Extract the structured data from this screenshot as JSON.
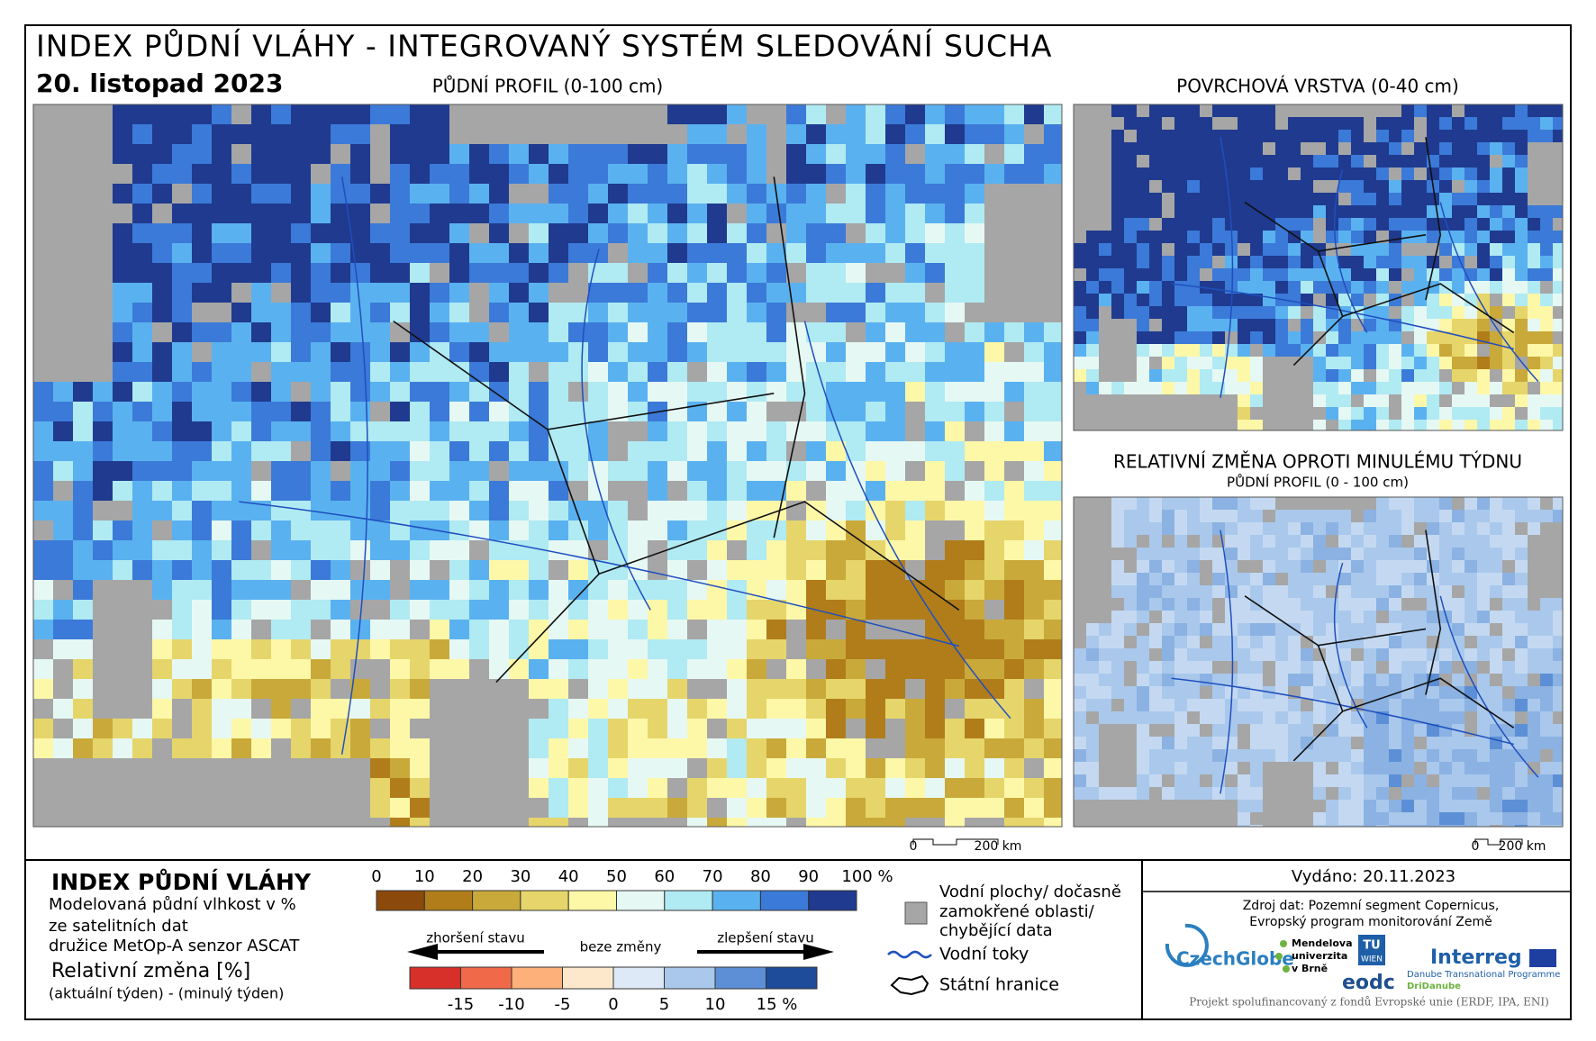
{
  "header": {
    "title": "INDEX PŮDNÍ VLÁHY - INTEGROVANÝ SYSTÉM SLEDOVÁNÍ SUCHA",
    "date": "20. listopad 2023"
  },
  "maps": [
    {
      "title": "PŮDNÍ PROFIL (0-100 cm)",
      "scale_start": "0",
      "scale_end": "200 km"
    },
    {
      "title": "POVRCHOVÁ VRSTVA (0-40 cm)"
    },
    {
      "title": "RELATIVNÍ ZMĚNA OPROTI MINULÉMU TÝDNU",
      "subtitle": "PŮDNÍ PROFIL (0 - 100 cm)",
      "scale_start": "0",
      "scale_end": "200 km"
    }
  ],
  "legend": {
    "title": "INDEX PŮDNÍ VLÁHY",
    "lines": [
      "Modelovaná půdní vlhkost v %",
      "ze satelitních dat",
      "družice MetOp-A senzor ASCAT"
    ],
    "index_labels": [
      "0",
      "10",
      "20",
      "30",
      "40",
      "50",
      "60",
      "70",
      "80",
      "90",
      "100 %"
    ],
    "index_colors": [
      "#8b4a0c",
      "#b07d1a",
      "#c9a93a",
      "#e6d56a",
      "#fdf7a8",
      "#e6f8f4",
      "#b0eaf3",
      "#5ab1f0",
      "#3b7ad8",
      "#1f3a8f"
    ],
    "worse": "zhoršení stavu",
    "same": "beze změny",
    "better": "zlepšení stavu",
    "change_title": "Relativní změna [%]",
    "change_note": "(aktuální týden) - (minulý týden)",
    "change_labels": [
      "-15",
      "-10",
      "-5",
      "0",
      "5",
      "10",
      "15 %"
    ],
    "change_colors": [
      "#d7302a",
      "#f06a4a",
      "#fdb07a",
      "#fde8cc",
      "#dde9f6",
      "#a9c8ec",
      "#5c8fd6",
      "#1e4c9a"
    ],
    "keys": {
      "water": [
        "Vodní plochy/ dočasně",
        "zamokřené oblasti/",
        "chybějící data"
      ],
      "rivers": "Vodní toky",
      "borders": "Státní hranice"
    }
  },
  "info": {
    "issued": "Vydáno: 20.11.2023",
    "source": [
      "Zdroj dat: Pozemní segment Copernicus,",
      "Evropský program monitorování Země"
    ],
    "logos": [
      "CzechGlobe",
      "Mendelova",
      "univerzita",
      "v Brně",
      "TU",
      "WIEN",
      "eodc",
      "Interreg",
      "Danube Transnational Programme",
      "DriDanube"
    ],
    "footer": "Projekt spolufinancovaný z fondů Evropské unie (ERDF, IPA, ENI)"
  }
}
